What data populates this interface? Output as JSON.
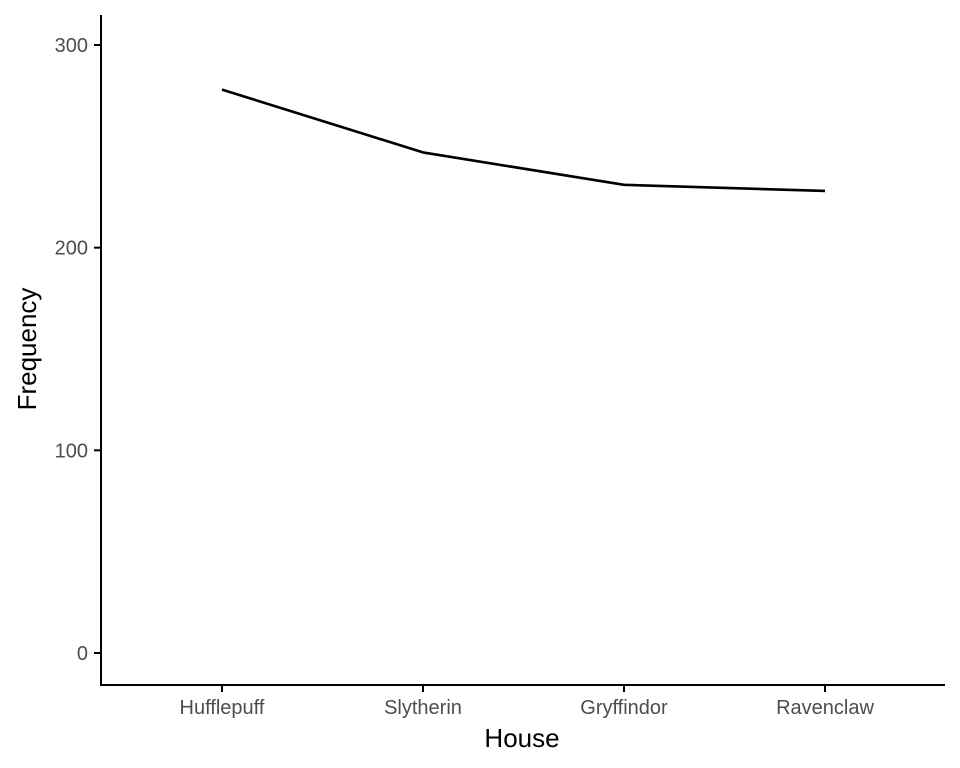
{
  "chart_data": {
    "type": "line",
    "title": "",
    "xlabel": "House",
    "ylabel": "Frequency",
    "categories": [
      "Hufflepuff",
      "Slytherin",
      "Gryffindor",
      "Ravenclaw"
    ],
    "series": [
      {
        "values": [
          278,
          247,
          231,
          228
        ]
      }
    ],
    "ylim": [
      0,
      300
    ],
    "yticks": [
      0,
      100,
      200,
      300
    ],
    "grid": false,
    "legend": "none",
    "line_color": "#000000"
  }
}
